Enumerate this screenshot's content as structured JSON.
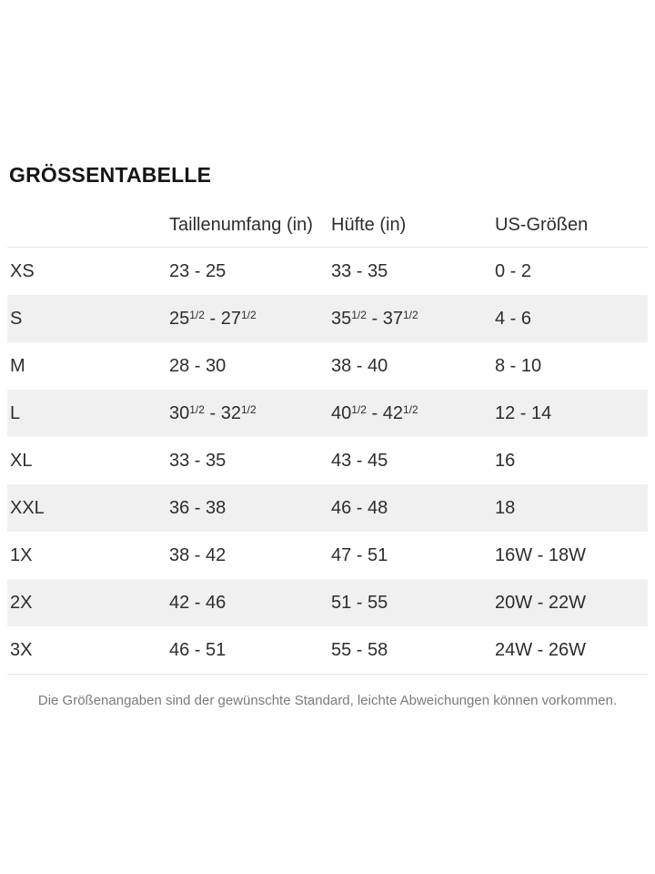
{
  "page": {
    "title": "GRÖSSENTABELLE",
    "footer_note": "Die Größenangaben sind der gewünschte Standard, leichte Abweichungen können vorkommen."
  },
  "table": {
    "columns": [
      "",
      "Taillenumfang (in)",
      "Hüfte (in)",
      "US-Größen"
    ],
    "rows": [
      {
        "size": "XS",
        "waist": [
          {
            "t": "23 - 25"
          }
        ],
        "hip": [
          {
            "t": "33 - 35"
          }
        ],
        "us": "0 - 2"
      },
      {
        "size": "S",
        "waist": [
          {
            "t": "25"
          },
          {
            "t": "1/2",
            "sup": true
          },
          {
            "t": " - 27"
          },
          {
            "t": "1/2",
            "sup": true
          }
        ],
        "hip": [
          {
            "t": "35"
          },
          {
            "t": "1/2",
            "sup": true
          },
          {
            "t": " - 37"
          },
          {
            "t": "1/2",
            "sup": true
          }
        ],
        "us": "4 - 6"
      },
      {
        "size": "M",
        "waist": [
          {
            "t": "28 - 30"
          }
        ],
        "hip": [
          {
            "t": "38 - 40"
          }
        ],
        "us": "8 - 10"
      },
      {
        "size": "L",
        "waist": [
          {
            "t": "30"
          },
          {
            "t": "1/2",
            "sup": true
          },
          {
            "t": " - 32"
          },
          {
            "t": "1/2",
            "sup": true
          }
        ],
        "hip": [
          {
            "t": "40"
          },
          {
            "t": "1/2",
            "sup": true
          },
          {
            "t": " - 42"
          },
          {
            "t": "1/2",
            "sup": true
          }
        ],
        "us": "12 - 14"
      },
      {
        "size": "XL",
        "waist": [
          {
            "t": "33 - 35"
          }
        ],
        "hip": [
          {
            "t": "43 - 45"
          }
        ],
        "us": "16"
      },
      {
        "size": "XXL",
        "waist": [
          {
            "t": "36 - 38"
          }
        ],
        "hip": [
          {
            "t": "46 - 48"
          }
        ],
        "us": "18"
      },
      {
        "size": "1X",
        "waist": [
          {
            "t": "38 - 42"
          }
        ],
        "hip": [
          {
            "t": "47 - 51"
          }
        ],
        "us": "16W - 18W"
      },
      {
        "size": "2X",
        "waist": [
          {
            "t": "42 - 46"
          }
        ],
        "hip": [
          {
            "t": "51 - 55"
          }
        ],
        "us": "20W - 22W"
      },
      {
        "size": "3X",
        "waist": [
          {
            "t": "46 - 51"
          }
        ],
        "hip": [
          {
            "t": "55 - 58"
          }
        ],
        "us": "24W - 26W"
      }
    ]
  },
  "colors": {
    "title": "#161616",
    "text": "#2d2d2d",
    "stripe": "#f0f0f0",
    "divider": "#e4e4e4",
    "muted": "#7b7b7b"
  }
}
